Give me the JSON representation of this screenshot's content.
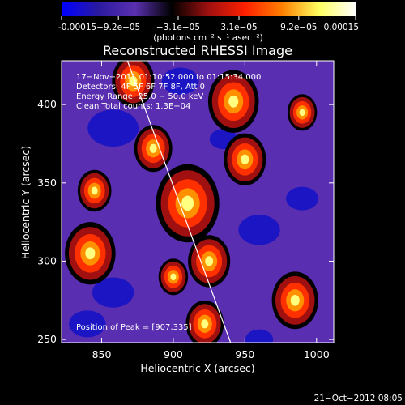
{
  "chart_data": {
    "type": "heatmap",
    "title": "Reconstructed RHESSI Image",
    "xlabel": "Heliocentric X (arcsec)",
    "ylabel": "Heliocentric Y (arcsec)",
    "xlim": [
      822,
      1012
    ],
    "ylim": [
      248,
      428
    ],
    "x_ticks": [
      850,
      900,
      950,
      1000
    ],
    "y_ticks": [
      250,
      300,
      350,
      400
    ],
    "colorbar": {
      "min": -0.00015,
      "max": 0.00015,
      "tick_values": [
        -0.00015,
        -9.2e-05,
        -3.1e-05,
        3.1e-05,
        9.2e-05,
        0.00015
      ],
      "tick_labels": [
        "-0.00015",
        "−9.2e−05",
        "−3.1e−05",
        "3.1e−05",
        "9.2e−05",
        "0.00015"
      ],
      "units": "(photons cm⁻² s⁻¹ asec⁻²)",
      "colors": [
        "#0000ff",
        "#2a1aa0",
        "#5a30b0",
        "#000000",
        "#a01010",
        "#ff2000",
        "#ff8000",
        "#ffff60",
        "#ffffff"
      ]
    },
    "annotations": [
      "17−Nov−2011 01:10:52.000 to 01:15:34.000",
      "Detectors: 4F 5F 6F 7F 8F, Att 0",
      "Energy Range: 25.0 − 50.0 keV",
      "Clean     Total counts: 1.3E+04"
    ],
    "peak_label": "Position of Peak = [907,335]",
    "peak": [
      907,
      335
    ],
    "limb_line": [
      [
        868,
        428
      ],
      [
        940,
        248
      ]
    ],
    "bright_sources": [
      {
        "x": 910,
        "y": 337,
        "value": 0.00015
      },
      {
        "x": 842,
        "y": 305,
        "value": 0.00012
      },
      {
        "x": 872,
        "y": 415,
        "value": 0.0001
      },
      {
        "x": 942,
        "y": 402,
        "value": 0.00012
      },
      {
        "x": 950,
        "y": 365,
        "value": 0.0001
      },
      {
        "x": 886,
        "y": 372,
        "value": 9e-05
      },
      {
        "x": 925,
        "y": 300,
        "value": 0.0001
      },
      {
        "x": 985,
        "y": 275,
        "value": 0.00011
      },
      {
        "x": 922,
        "y": 260,
        "value": 9e-05
      },
      {
        "x": 845,
        "y": 345,
        "value": 8e-05
      },
      {
        "x": 990,
        "y": 395,
        "value": 7e-05
      },
      {
        "x": 900,
        "y": 290,
        "value": 7e-05
      }
    ],
    "dim_sources": [
      {
        "x": 858,
        "y": 280,
        "value": -9e-05
      },
      {
        "x": 858,
        "y": 385,
        "value": -0.00011
      },
      {
        "x": 905,
        "y": 415,
        "value": -8e-05
      },
      {
        "x": 960,
        "y": 320,
        "value": -9e-05
      },
      {
        "x": 990,
        "y": 340,
        "value": -7e-05
      },
      {
        "x": 935,
        "y": 378,
        "value": -6e-05
      },
      {
        "x": 840,
        "y": 260,
        "value": -8e-05
      },
      {
        "x": 960,
        "y": 250,
        "value": -6e-05
      }
    ]
  },
  "footer_date": "21−Oct−2012 08:05"
}
